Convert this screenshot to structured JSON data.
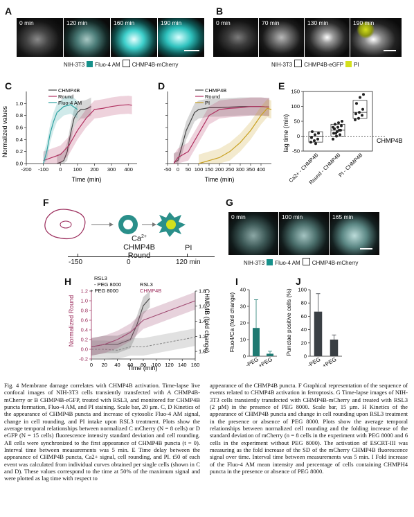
{
  "panels": {
    "A": {
      "label": "A",
      "times": [
        "0 min",
        "120 min",
        "160 min",
        "190 min"
      ],
      "legend": {
        "cell": "NIH-3T3",
        "c1": "Fluo-4 AM",
        "c2": "CHMP4B-mCherry",
        "c1_color": "#16908a",
        "c2_color": "#ffffff"
      }
    },
    "B": {
      "label": "B",
      "times": [
        "0 min",
        "70 min",
        "130 min",
        "190 min"
      ],
      "legend": {
        "cell": "NIH-3T3",
        "c1": "CHMP4B-eGFP",
        "c2": "PI",
        "c1_color": "#ffffff",
        "c2_color": "#d4e01c"
      }
    },
    "C": {
      "label": "C",
      "ylabel": "Normalized values",
      "xlabel": "Time (min)",
      "legend": [
        "CHMP4B",
        "Round",
        "Fluo-4 AM"
      ]
    },
    "D": {
      "label": "D",
      "xlabel": "Time (min)",
      "legend": [
        "CHMP4B",
        "Round",
        "PI"
      ]
    },
    "E": {
      "label": "E",
      "ylabel": "lag time (min)",
      "ref_label": "CHMP4B",
      "categories": [
        "Ca2+ - CHMP4B",
        "Round - CHMP4B",
        "PI - CHMP4B"
      ]
    },
    "F": {
      "label": "F",
      "ca": "Ca",
      "ca_sup": "2+",
      "chmp": "CHMP4B",
      "round": "Round",
      "pi": "PI",
      "ticks": [
        "-150",
        "0",
        "120 min"
      ]
    },
    "G": {
      "label": "G",
      "times": [
        "0 min",
        "100 min",
        "165 min"
      ],
      "legend": {
        "cell": "NIH-3T3",
        "c1": "Fluo-4 AM",
        "c2": "CHMP4B-mCherry",
        "c1_color": "#16908a",
        "c2_color": "#ffffff"
      }
    },
    "H": {
      "label": "H",
      "ylabel_left": "Normalized Round",
      "ylabel_right": "CHMP4B (fold change)",
      "xlabel": "Time (min)",
      "legend_title": "RSL3",
      "leg1": "- PEG 8000",
      "leg2": "+ PEG 8000",
      "leg_right1": "RSL3",
      "leg_right2": "CHMP4B"
    },
    "I": {
      "label": "I",
      "ylabel": "Fluo4/Ca  (fold change)",
      "categories": [
        "-PEG",
        "+PEG"
      ]
    },
    "J": {
      "label": "J",
      "ylabel": "Punctae positive cells (%)",
      "categories": [
        "-PEG",
        "+PEG"
      ]
    }
  },
  "chart_data": [
    {
      "id": "C",
      "type": "line",
      "xlim": [
        -200,
        450
      ],
      "ylim": [
        0,
        1.2
      ],
      "xticks": [
        -200,
        -100,
        0,
        100,
        200,
        300,
        400
      ],
      "yticks": [
        0,
        0.2,
        0.4,
        0.6,
        0.8,
        1.0
      ],
      "series": [
        {
          "name": "CHMP4B",
          "color": "#444444",
          "x": [
            -20,
            0,
            20,
            40,
            60,
            80,
            100,
            120,
            140,
            160,
            180
          ],
          "y": [
            0,
            0.02,
            0.05,
            0.2,
            0.5,
            0.75,
            0.85,
            0.9,
            0.9,
            0.92,
            0.95
          ]
        },
        {
          "name": "Round",
          "color": "#b03060",
          "x": [
            -100,
            -50,
            0,
            50,
            100,
            150,
            200,
            250,
            300,
            350,
            400,
            420
          ],
          "y": [
            0.05,
            0.1,
            0.15,
            0.3,
            0.55,
            0.75,
            0.9,
            0.92,
            0.95,
            0.97,
            0.98,
            0.97
          ]
        },
        {
          "name": "Fluo-4 AM",
          "color": "#2aa1a0",
          "x": [
            -100,
            -80,
            -60,
            -40,
            -20,
            0,
            20,
            60,
            100
          ],
          "y": [
            0,
            0.2,
            0.5,
            0.7,
            0.85,
            0.9,
            0.95,
            0.98,
            0.9
          ]
        }
      ]
    },
    {
      "id": "D",
      "type": "line",
      "xlim": [
        -50,
        450
      ],
      "ylim": [
        0,
        1.2
      ],
      "xticks": [
        -50,
        0,
        50,
        100,
        150,
        200,
        250,
        300,
        350,
        400
      ],
      "yticks": [
        0,
        0.2,
        0.4,
        0.6,
        0.8,
        1.0
      ],
      "series": [
        {
          "name": "CHMP4B",
          "color": "#444444",
          "x": [
            -20,
            0,
            20,
            40,
            60,
            80,
            100,
            150,
            200,
            300,
            400,
            440
          ],
          "y": [
            0.02,
            0.05,
            0.3,
            0.55,
            0.7,
            0.85,
            0.9,
            0.93,
            0.93,
            0.95,
            0.95,
            0.94
          ]
        },
        {
          "name": "Round",
          "color": "#b03060",
          "x": [
            -20,
            0,
            50,
            100,
            150,
            200,
            250,
            300,
            350,
            400,
            440
          ],
          "y": [
            0,
            0.1,
            0.2,
            0.5,
            0.8,
            0.9,
            0.92,
            0.93,
            0.95,
            0.95,
            0.94
          ]
        },
        {
          "name": "PI",
          "color": "#c8a020",
          "x": [
            100,
            150,
            200,
            250,
            300,
            350,
            400,
            430,
            450
          ],
          "y": [
            0,
            0.05,
            0.1,
            0.2,
            0.35,
            0.55,
            0.8,
            0.92,
            0.9
          ]
        }
      ]
    },
    {
      "id": "E",
      "type": "scatter",
      "ylim": [
        -50,
        150
      ],
      "yticks": [
        -50,
        0,
        50,
        100,
        150
      ],
      "groups": [
        {
          "name": "Ca2+ - CHMP4B",
          "values": [
            -20,
            -15,
            -10,
            -5,
            5,
            10,
            15,
            -25
          ],
          "box": [
            -20,
            15
          ],
          "median": 0
        },
        {
          "name": "Round - CHMP4B",
          "values": [
            -10,
            0,
            5,
            10,
            15,
            20,
            25,
            30,
            35,
            40,
            45,
            50,
            10,
            20,
            30
          ],
          "box": [
            0,
            40
          ],
          "median": 20
        },
        {
          "name": "PI - CHMP4B",
          "values": [
            55,
            60,
            70,
            75,
            80,
            90,
            110,
            130,
            140
          ],
          "box": [
            60,
            120
          ],
          "median": 80
        }
      ]
    },
    {
      "id": "H",
      "type": "line",
      "xlim": [
        0,
        160
      ],
      "ylim": [
        -0.2,
        1.2
      ],
      "y2lim": [
        0.9,
        1.8
      ],
      "xticks": [
        0,
        20,
        40,
        60,
        80,
        100,
        120,
        140,
        160
      ],
      "yticks": [
        -0.2,
        0,
        0.2,
        0.4,
        0.6,
        0.8,
        1.0,
        1.2
      ],
      "y2ticks": [
        1.0,
        1.2,
        1.4,
        1.6,
        1.8
      ],
      "series": [
        {
          "name": "- PEG 8000 Round",
          "color": "#444444",
          "x": [
            0,
            20,
            40,
            60,
            70,
            80,
            90
          ],
          "y": [
            0.05,
            0.1,
            0.1,
            0.2,
            0.5,
            0.9,
            1.05
          ]
        },
        {
          "name": "+ PEG 8000 Round",
          "color": "#888888",
          "x": [
            0,
            20,
            40,
            60,
            80,
            100,
            120,
            140,
            160
          ],
          "y": [
            0,
            0,
            -0.02,
            0.05,
            0.05,
            0.1,
            0.15,
            0.2,
            0.25
          ]
        },
        {
          "name": "CHMP4B",
          "color": "#a04a72",
          "x": [
            0,
            20,
            40,
            60,
            80,
            100,
            120,
            140,
            160
          ],
          "y": [
            0.05,
            0.1,
            0.2,
            0.35,
            0.6,
            0.7,
            0.8,
            0.9,
            1.0
          ]
        }
      ]
    },
    {
      "id": "I",
      "type": "bar",
      "categories": [
        "-PEG",
        "+PEG"
      ],
      "values": [
        17,
        1.5
      ],
      "errors": [
        17,
        1.5
      ],
      "ylim": [
        0,
        40
      ],
      "yticks": [
        0,
        10,
        20,
        30,
        40
      ],
      "colors": [
        "#1f7a72",
        "#1f7a72"
      ]
    },
    {
      "id": "J",
      "type": "bar",
      "categories": [
        "-PEG",
        "+PEG"
      ],
      "values": [
        67,
        25
      ],
      "errors": [
        27,
        7
      ],
      "ylim": [
        0,
        100
      ],
      "yticks": [
        0,
        20,
        40,
        60,
        80,
        100
      ],
      "colors": [
        "#3a3f44",
        "#3a3f44"
      ]
    }
  ],
  "caption_left": "Fig. 4 Membrane damage correlates with CHMP4B activation. Time-lapse live confocal images of NIH-3T3 cells transiently transfected with A CHMP4B-mCherry or B CHMP4B-eGFP, treated with RSL3, and monitored for CHMP4B puncta formation, Fluo-4 AM, and PI staining. Scale bar, 20 µm. C, D Kinetics of the appearance of CHMP4B puncta and increase of cytosolic Fluo-4 AM signal, change in cell rounding, and PI intake upon RSL3 treatment. Plots show the average temporal relationships between normalized C mCherry (N = 8 cells) or D eGFP (N = 15 cells) fluorescence intensity standard deviation and cell rounding. All cells were synchronized to the first appearance of CHMP4B puncta (t = 0). Interval time between measurements was 5 min. E Time delay between the appearance of CHMP4B puncta, Ca2+ signal, cell rounding, and PI. t50 of each event was calculated from individual curves obtained per single cells (shown in C and D). These values correspond to the time at 50% of the maximum signal and were plotted as lag time with respect to",
  "caption_right": "appearance of the CHMP4B puncta. F Graphical representation of the sequence of events related to CHMP4B activation in ferroptosis. G Time-lapse images of NIH-3T3 cells transiently transfected with CHMP4B-mCherry and treated with RSL3 (2 µM) in the presence of PEG 8000. Scale bar, 15 µm. H Kinetics of the appearance of CHMP4B puncta and change in cell rounding upon RSL3 treatment in the presence or absence of PEG 8000. Plots show the average temporal relationships between normalized cell rounding and the folding increase of the standard deviation of mCherry (n = 8 cells in the experiment with PEG 8000 and 6 cells in the experiment without PEG 8000). The activation of ESCRT-III was measuring as the fold increase of the SD of the mCherry CHMP4B fluorescence signal over time. Interval time between measurements was 5 min. I Fold increase of the Fluo-4 AM mean intensity and percentage of cells containing CHMPH4 puncta in the presence or absence of PEG 8000."
}
